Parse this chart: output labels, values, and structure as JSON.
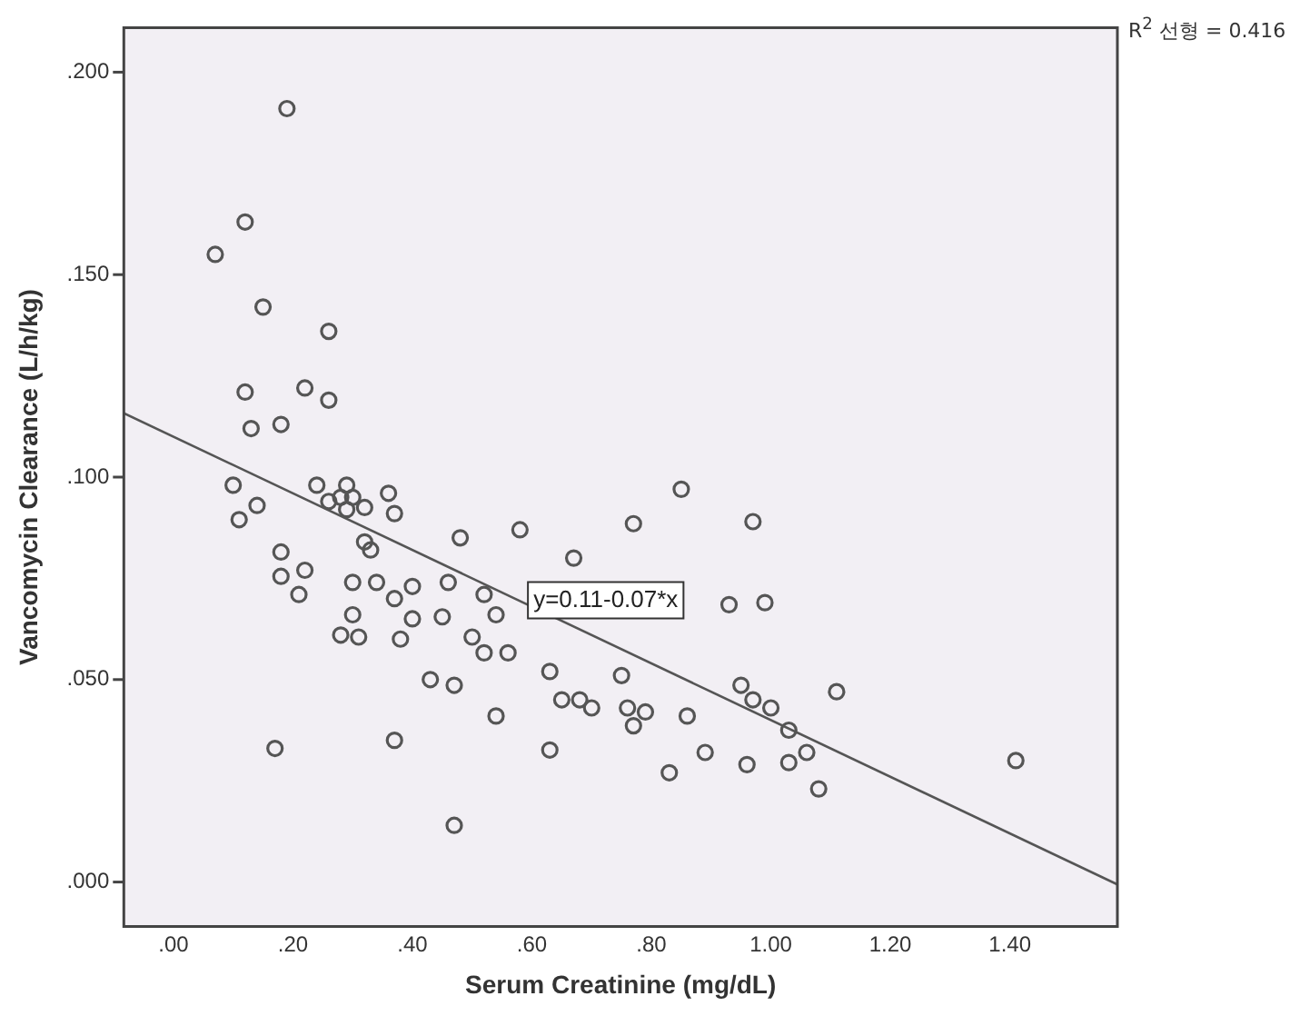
{
  "chart_data": {
    "type": "scatter",
    "xlabel": "Serum Creatinine (mg/dL)",
    "ylabel": "Vancomycin Clearance (L/h/kg)",
    "xlim": [
      -0.083,
      1.58
    ],
    "ylim": [
      -0.011,
      0.211
    ],
    "xticks": [
      {
        "value": 0,
        "label": ".00"
      },
      {
        "value": 0.2,
        "label": ".20"
      },
      {
        "value": 0.4,
        "label": ".40"
      },
      {
        "value": 0.6,
        "label": ".60"
      },
      {
        "value": 0.8,
        "label": ".80"
      },
      {
        "value": 1.0,
        "label": "1.00"
      },
      {
        "value": 1.2,
        "label": "1.20"
      },
      {
        "value": 1.4,
        "label": "1.40"
      }
    ],
    "yticks": [
      {
        "value": 0,
        "label": ".000"
      },
      {
        "value": 0.05,
        "label": ".050"
      },
      {
        "value": 0.1,
        "label": ".100"
      },
      {
        "value": 0.15,
        "label": ".150"
      },
      {
        "value": 0.2,
        "label": ".200"
      }
    ],
    "grid": false,
    "legend": false,
    "series": [
      {
        "marker": "circle",
        "color": "#555555",
        "x": [
          0.19,
          0.12,
          0.07,
          0.15,
          0.26,
          0.12,
          0.22,
          0.26,
          0.13,
          0.18,
          0.1,
          0.24,
          0.29,
          0.36,
          0.14,
          0.11,
          0.26,
          0.28,
          0.3,
          0.29,
          0.32,
          0.37,
          0.32,
          0.33,
          0.48,
          0.58,
          0.18,
          0.18,
          0.22,
          0.21,
          0.3,
          0.34,
          0.4,
          0.46,
          0.52,
          0.37,
          0.3,
          0.4,
          0.45,
          0.54,
          0.28,
          0.31,
          0.38,
          0.5,
          0.52,
          0.56,
          0.43,
          0.47,
          0.54,
          0.17,
          0.37,
          0.63,
          0.47,
          0.63,
          0.85,
          0.77,
          0.97,
          0.67,
          0.93,
          0.99,
          0.75,
          0.65,
          0.68,
          0.7,
          0.76,
          0.79,
          0.77,
          0.86,
          0.95,
          0.97,
          1.0,
          1.03,
          1.06,
          1.11,
          0.89,
          0.83,
          0.96,
          1.03,
          1.08,
          1.41
        ],
        "values": [
          0.191,
          0.163,
          0.155,
          0.142,
          0.136,
          0.121,
          0.122,
          0.119,
          0.112,
          0.113,
          0.098,
          0.098,
          0.098,
          0.096,
          0.093,
          0.0895,
          0.094,
          0.095,
          0.095,
          0.092,
          0.0925,
          0.091,
          0.084,
          0.082,
          0.085,
          0.087,
          0.0815,
          0.0755,
          0.077,
          0.071,
          0.074,
          0.074,
          0.073,
          0.074,
          0.071,
          0.07,
          0.066,
          0.065,
          0.0655,
          0.066,
          0.061,
          0.0605,
          0.06,
          0.0605,
          0.0566,
          0.0566,
          0.05,
          0.0486,
          0.041,
          0.033,
          0.035,
          0.0326,
          0.014,
          0.052,
          0.097,
          0.0885,
          0.089,
          0.08,
          0.0685,
          0.069,
          0.051,
          0.045,
          0.045,
          0.043,
          0.043,
          0.042,
          0.0386,
          0.041,
          0.0486,
          0.045,
          0.043,
          0.0375,
          0.032,
          0.047,
          0.032,
          0.027,
          0.029,
          0.0295,
          0.023,
          0.03
        ]
      },
      {
        "type": "line",
        "color": "#555555",
        "x": [
          -0.083,
          1.58
        ],
        "values": [
          0.1158,
          -0.0006
        ]
      }
    ],
    "annotations": [
      "y=0.11-0.07*x",
      "R$^{2}$ 선형 = 0.416"
    ]
  }
}
